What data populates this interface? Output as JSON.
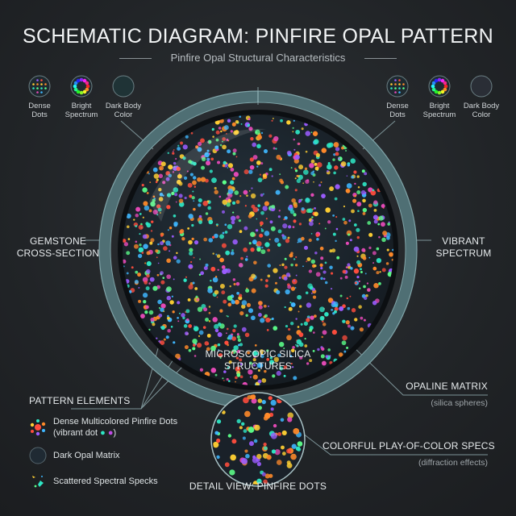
{
  "header": {
    "title": "SCHEMATIC DIAGRAM: PINFIRE OPAL PATTERN",
    "subtitle": "Pinfire Opal Structural Characteristics"
  },
  "legend_left": [
    {
      "icon": "dense-dots-icon",
      "label": "Dense Dots"
    },
    {
      "icon": "spectrum-wheel-icon",
      "label": "Bright Spectrum"
    },
    {
      "icon": "dark-body-icon",
      "label": "Dark Body Color"
    }
  ],
  "legend_right": [
    {
      "icon": "dense-dots-icon",
      "label": "Dense Dots"
    },
    {
      "icon": "spectrum-wheel-icon",
      "label": "Bright Spectrum"
    },
    {
      "icon": "dark-body-icon",
      "label": "Dark Body Color"
    }
  ],
  "labels": {
    "left": "GEMSTONE CROSS-SECTION",
    "right": "VIBRANT SPECTRUM",
    "center": "MICROSCOPIC SILICA STRUCTURES",
    "opaline": "OPALINE MATRIX",
    "opaline_sub": "(silica spheres)",
    "specs": "COLORFUL PLAY-OF-COLOR SPECS",
    "specs_sub": "(diffraction effects)",
    "detail": "DETAIL VIEW: PINFIRE DOTS"
  },
  "pattern_elements": {
    "title": "PATTERN ELEMENTS",
    "items": [
      {
        "icon": "multicolor-dots-icon",
        "label": "Dense Multicolored Pinfire Dots",
        "sub": "(vibrant dot",
        "sub_end": ")"
      },
      {
        "icon": "dark-matrix-icon",
        "label": "Dark Opal Matrix"
      },
      {
        "icon": "spectral-specks-icon",
        "label": "Scattered Spectral Specks"
      }
    ]
  },
  "colors": {
    "background": "#212427",
    "ring": "#5f8388",
    "matrix": "#1f2a33",
    "dots": [
      "#ff4d3d",
      "#ffcf33",
      "#2ee6c4",
      "#3fb7ff",
      "#9b5cff",
      "#ff8a2a",
      "#5cff8a",
      "#e64ab8"
    ]
  }
}
